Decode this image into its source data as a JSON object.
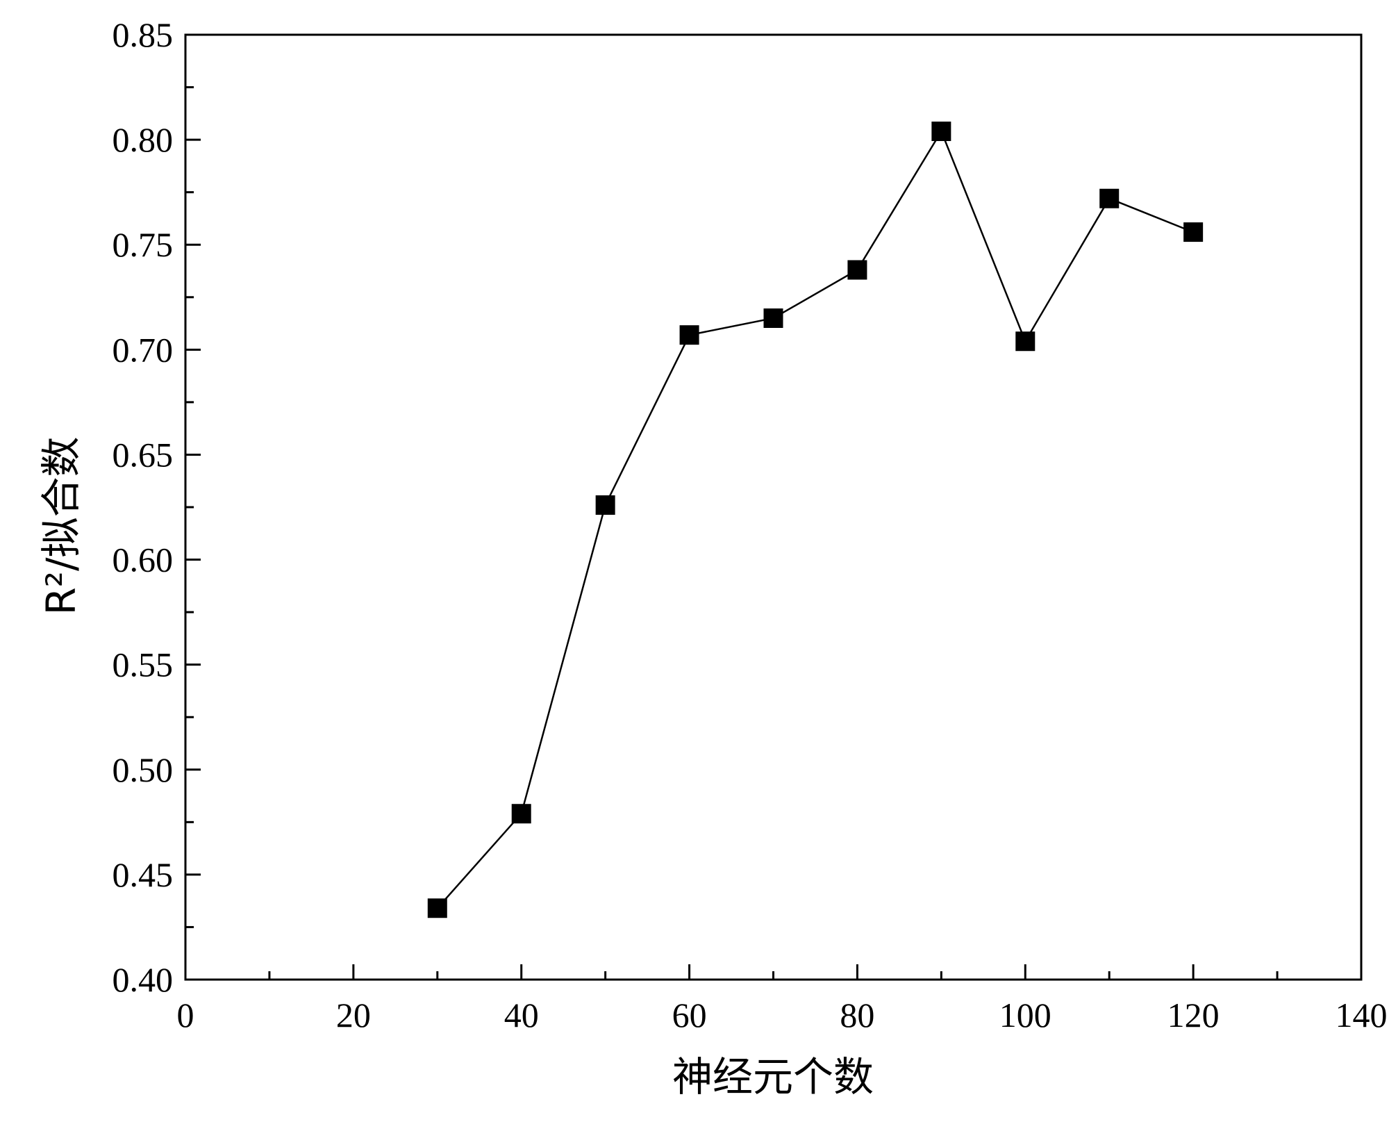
{
  "chart_data": {
    "type": "line",
    "title": "",
    "xlabel": "神经元个数",
    "ylabel": "R²/拟合数",
    "xlim": [
      0,
      140
    ],
    "ylim": [
      0.4,
      0.85
    ],
    "x_ticks": [
      0,
      20,
      40,
      60,
      80,
      100,
      120,
      140
    ],
    "x_tick_labels": [
      "0",
      "20",
      "40",
      "60",
      "80",
      "100",
      "120",
      "140"
    ],
    "y_ticks": [
      0.4,
      0.45,
      0.5,
      0.55,
      0.6,
      0.65,
      0.7,
      0.75,
      0.8,
      0.85
    ],
    "y_tick_labels": [
      "0.40",
      "0.45",
      "0.50",
      "0.55",
      "0.60",
      "0.65",
      "0.70",
      "0.75",
      "0.80",
      "0.85"
    ],
    "grid": false,
    "legend": "none",
    "marker": "square",
    "series": [
      {
        "x": [
          30,
          40,
          50,
          60,
          70,
          80,
          90,
          100,
          110,
          120
        ],
        "y": [
          0.434,
          0.479,
          0.626,
          0.707,
          0.715,
          0.738,
          0.804,
          0.704,
          0.772,
          0.756
        ],
        "color": "#000000"
      }
    ]
  }
}
